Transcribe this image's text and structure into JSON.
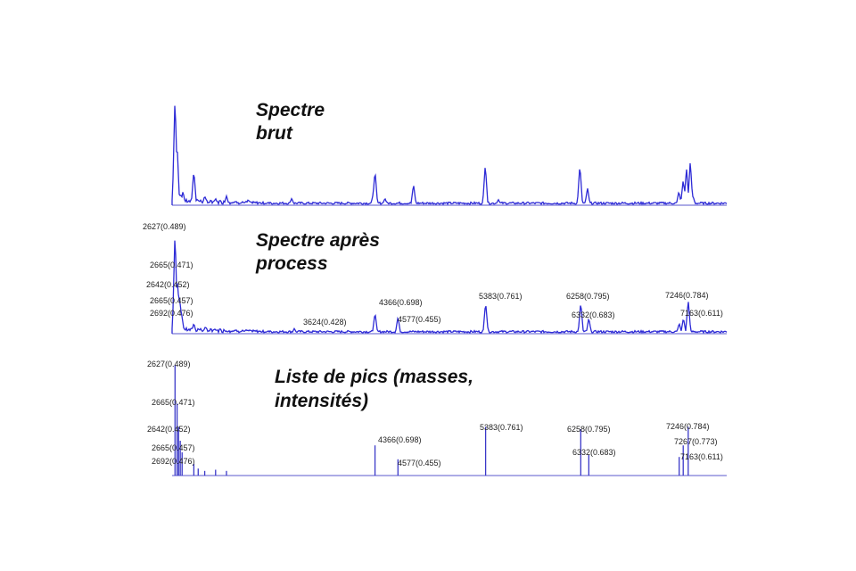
{
  "colors": {
    "spectrum": "#2d2ad6",
    "stick": "#3a38c8",
    "baseline": "#7a79d8",
    "label_text": "#222222"
  },
  "chart_data": [
    {
      "type": "line",
      "title_lines": [
        "Spectre",
        "brut"
      ],
      "xlim": [
        2500,
        7600
      ],
      "ylim": [
        0,
        1
      ],
      "points": [
        [
          2527,
          0.95
        ],
        [
          2545,
          0.55
        ],
        [
          2560,
          0.12
        ],
        [
          2578,
          0.1
        ],
        [
          2600,
          0.12
        ],
        [
          2700,
          0.3
        ],
        [
          2730,
          0.05
        ],
        [
          2800,
          0.08
        ],
        [
          2900,
          0.06
        ],
        [
          3000,
          0.08
        ],
        [
          3200,
          0.05
        ],
        [
          3600,
          0.06
        ],
        [
          4350,
          0.1
        ],
        [
          4366,
          0.3
        ],
        [
          4457,
          0.06
        ],
        [
          4720,
          0.18
        ],
        [
          5380,
          0.35
        ],
        [
          5500,
          0.05
        ],
        [
          6250,
          0.35
        ],
        [
          6320,
          0.15
        ],
        [
          7160,
          0.12
        ],
        [
          7200,
          0.22
        ],
        [
          7230,
          0.32
        ],
        [
          7265,
          0.38
        ],
        [
          7290,
          0.08
        ]
      ]
    },
    {
      "type": "line",
      "title_lines": [
        "Spectre après",
        "process"
      ],
      "xlim": [
        2500,
        7600
      ],
      "ylim": [
        0,
        1
      ],
      "points": [
        [
          2527,
          0.98
        ],
        [
          2546,
          0.55
        ],
        [
          2560,
          0.42
        ],
        [
          2575,
          0.3
        ],
        [
          2590,
          0.17
        ],
        [
          2700,
          0.1
        ],
        [
          2800,
          0.05
        ],
        [
          3624,
          0.05
        ],
        [
          4366,
          0.2
        ],
        [
          4577,
          0.16
        ],
        [
          5383,
          0.3
        ],
        [
          6258,
          0.3
        ],
        [
          6332,
          0.15
        ],
        [
          7163,
          0.1
        ],
        [
          7202,
          0.15
        ],
        [
          7246,
          0.32
        ]
      ],
      "peak_labels": [
        "2627(0.489)",
        "2665(0.471)",
        "2642(0.452)",
        "2665(0.457)",
        "2692(0.476)",
        "3624(0.428)",
        "4366(0.698)",
        "4577(0.455)",
        "5383(0.761)",
        "6258(0.795)",
        "6332(0.683)",
        "7246(0.784)",
        "7163(0.611)"
      ]
    },
    {
      "type": "bar",
      "title_lines": [
        "Liste de pics (masses,",
        "intensités)"
      ],
      "xlim": [
        2500,
        7600
      ],
      "ylim": [
        0,
        1
      ],
      "sticks": [
        [
          2527,
          0.95
        ],
        [
          2546,
          0.62
        ],
        [
          2560,
          0.42
        ],
        [
          2575,
          0.3
        ],
        [
          2592,
          0.2
        ],
        [
          2700,
          0.1
        ],
        [
          2740,
          0.06
        ],
        [
          2800,
          0.04
        ],
        [
          2900,
          0.05
        ],
        [
          3000,
          0.04
        ],
        [
          4366,
          0.26
        ],
        [
          4577,
          0.14
        ],
        [
          5383,
          0.42
        ],
        [
          6258,
          0.4
        ],
        [
          6332,
          0.18
        ],
        [
          7163,
          0.16
        ],
        [
          7200,
          0.26
        ],
        [
          7246,
          0.42
        ]
      ],
      "peak_labels": [
        "2627(0.489)",
        "2665(0.471)",
        "2642(0.452)",
        "2665(0.457)",
        "2692(0.476)",
        "4366(0.698)",
        "4577(0.455)",
        "5383(0.761)",
        "6258(0.795)",
        "6332(0.683)",
        "7246(0.784)",
        "7267(0.773)",
        "7163(0.611)"
      ]
    }
  ]
}
